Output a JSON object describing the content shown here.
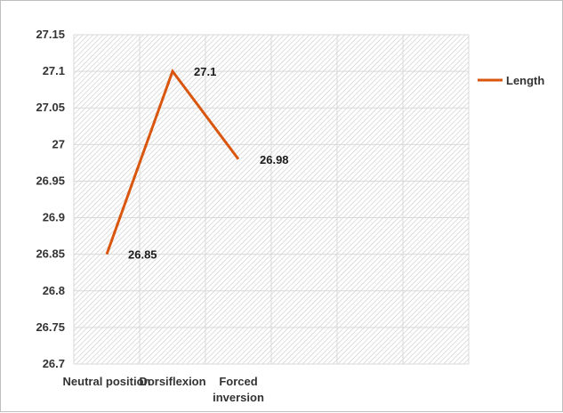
{
  "chart_data": {
    "type": "line",
    "categories": [
      "Neutral position",
      "Dorsiflexion",
      "Forced inversion"
    ],
    "category_lines": [
      [
        "Neutral position"
      ],
      [
        "Dorsiflexion"
      ],
      [
        "Forced",
        "inversion"
      ]
    ],
    "series": [
      {
        "name": "Length",
        "values": [
          26.85,
          27.1,
          26.98
        ],
        "labels": [
          "26.85",
          "27.1",
          "26.98"
        ],
        "color": "#d9560f"
      }
    ],
    "ylim": [
      26.7,
      27.15
    ],
    "yticks": [
      26.7,
      26.75,
      26.8,
      26.85,
      26.9,
      26.95,
      27,
      27.05,
      27.1,
      27.15
    ],
    "ytick_labels": [
      "26.7",
      "26.75",
      "26.8",
      "26.85",
      "26.9",
      "26.95",
      "27",
      "27.05",
      "27.1",
      "27.15"
    ],
    "n_slots": 6,
    "grid": true,
    "plot_background": "hatched",
    "legend": "right",
    "title": "",
    "xlabel": "",
    "ylabel": ""
  }
}
